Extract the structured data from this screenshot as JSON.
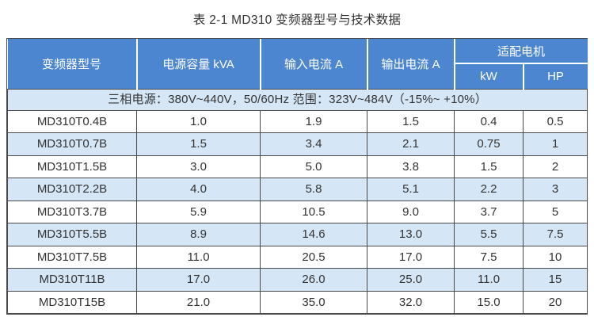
{
  "page": {
    "title": "表 2-1 MD310 变频器型号与技术数据"
  },
  "table": {
    "type": "table",
    "columns": [
      "变频器型号",
      "电源容量 kVA",
      "输入电流 A",
      "输出电流 A"
    ],
    "motor_group": {
      "label": "适配电机",
      "sub": [
        "kW",
        "HP"
      ]
    },
    "banner": "三相电源：380V~440V，50/60Hz 范围：323V~484V（-15%~ +10%）",
    "rows": [
      [
        "MD310T0.4B",
        "1.0",
        "1.9",
        "1.5",
        "0.4",
        "0.5"
      ],
      [
        "MD310T0.7B",
        "1.5",
        "3.4",
        "2.1",
        "0.75",
        "1"
      ],
      [
        "MD310T1.5B",
        "3.0",
        "5.0",
        "3.8",
        "1.5",
        "2"
      ],
      [
        "MD310T2.2B",
        "4.0",
        "5.8",
        "5.1",
        "2.2",
        "3"
      ],
      [
        "MD310T3.7B",
        "5.9",
        "10.5",
        "9.0",
        "3.7",
        "5"
      ],
      [
        "MD310T5.5B",
        "8.9",
        "14.6",
        "13.0",
        "5.5",
        "7.5"
      ],
      [
        "MD310T7.5B",
        "11.0",
        "20.5",
        "17.0",
        "7.5",
        "10"
      ],
      [
        "MD310T11B",
        "17.0",
        "26.0",
        "25.0",
        "11.0",
        "15"
      ],
      [
        "MD310T15B",
        "21.0",
        "35.0",
        "32.0",
        "15.0",
        "20"
      ]
    ]
  },
  "colors": {
    "header_bg": "#4c86d0",
    "stripe_bg": "#d5e6f7",
    "border": "#4a4a4a",
    "header_text": "#ffffff",
    "body_text": "#333333"
  }
}
